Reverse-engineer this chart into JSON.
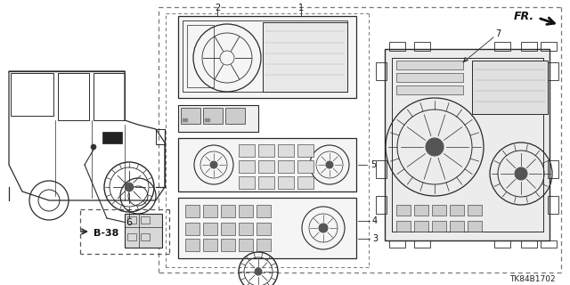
{
  "bg_color": "#ffffff",
  "line_color": "#2a2a2a",
  "text_color": "#111111",
  "dash_color": "#555555",
  "b38_label": "B-38",
  "diagram_code": "TK84B1702",
  "fr_label": "FR.",
  "part_labels": [
    "1",
    "2",
    "3",
    "4",
    "5",
    "7"
  ]
}
